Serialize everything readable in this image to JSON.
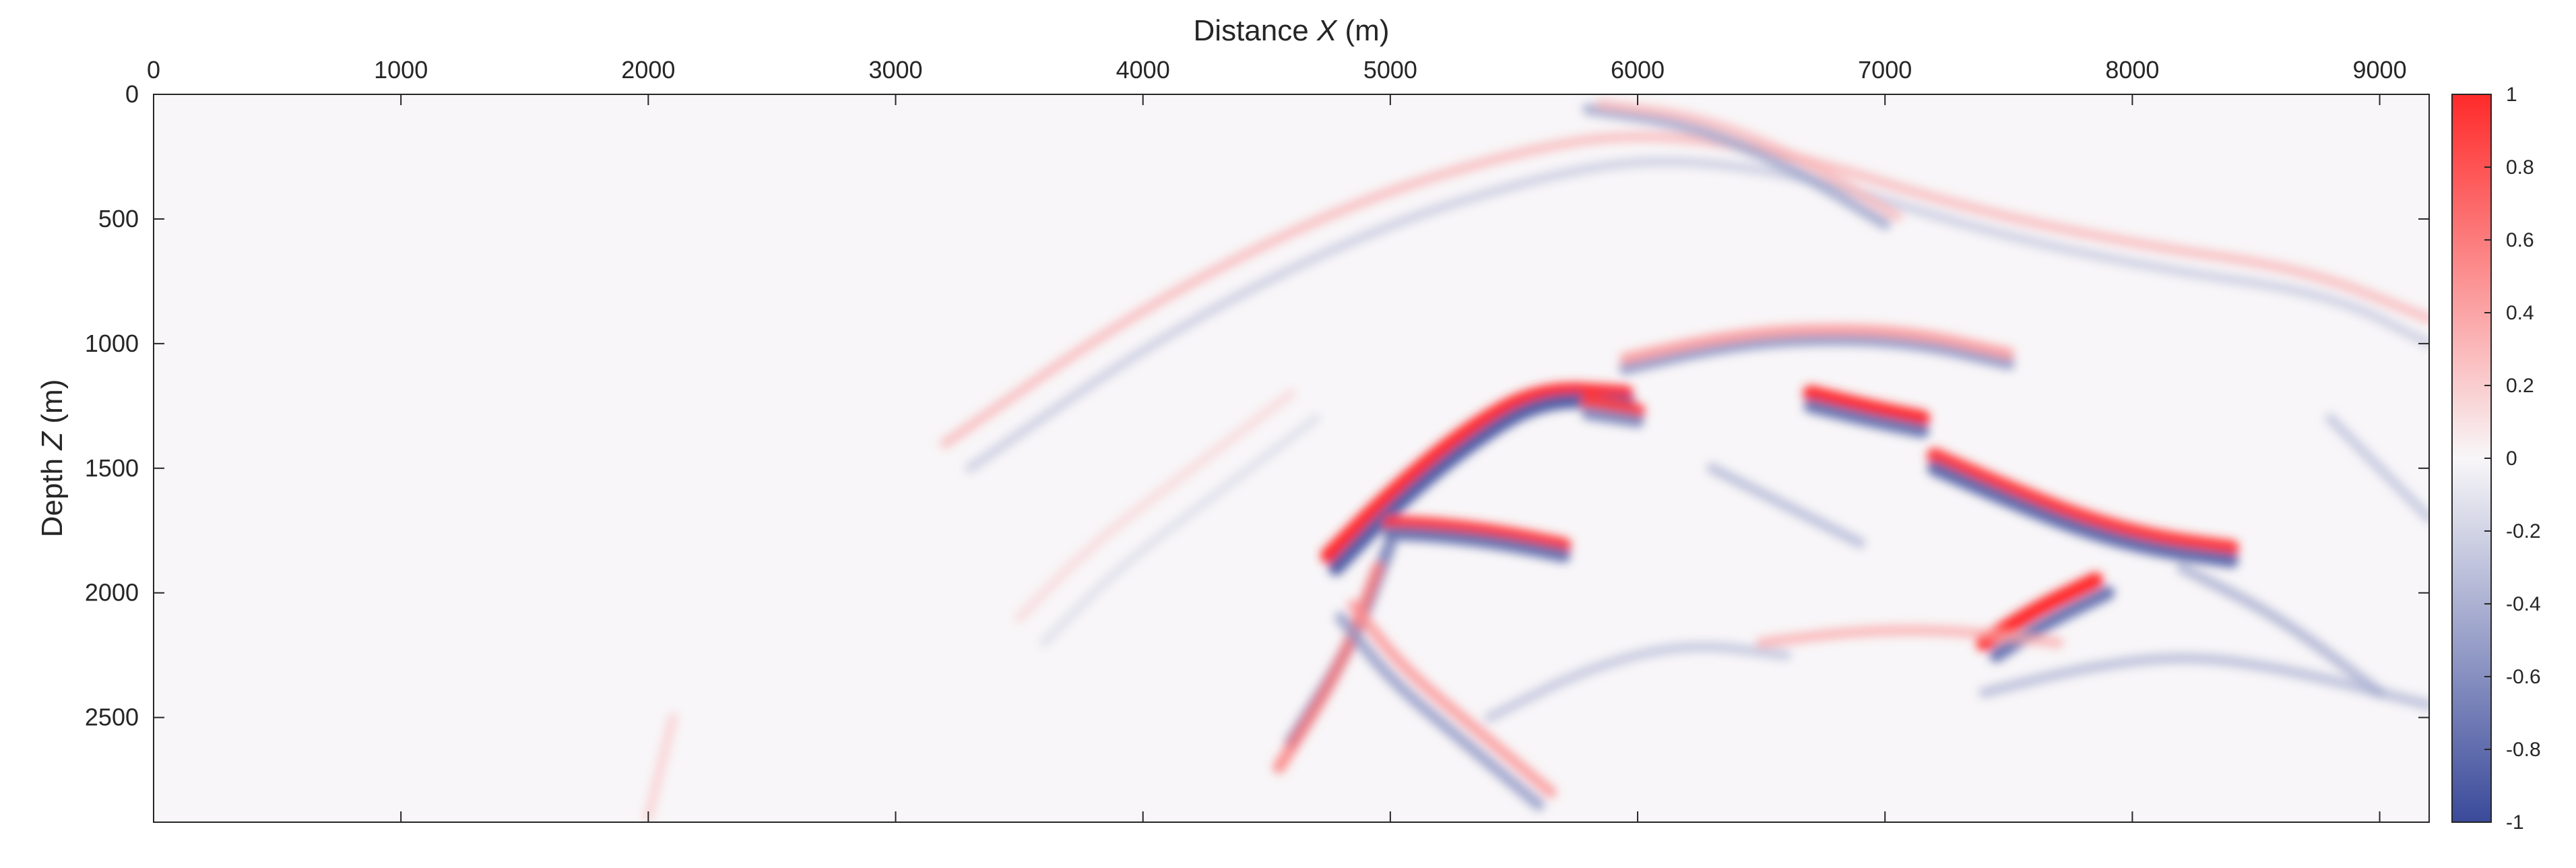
{
  "chart_data": {
    "type": "heatmap",
    "xlabel_prefix": "Distance ",
    "xlabel_var": "X",
    "xlabel_suffix": " (m)",
    "ylabel_prefix": "Depth ",
    "ylabel_var": "Z",
    "ylabel_suffix": " (m)",
    "xlim": [
      0,
      9200
    ],
    "ylim": [
      0,
      2920
    ],
    "y_reversed": true,
    "x_axis_position": "top",
    "x_ticks": [
      0,
      1000,
      2000,
      3000,
      4000,
      5000,
      6000,
      7000,
      8000,
      9000
    ],
    "x_tick_labels": [
      "0",
      "1000",
      "2000",
      "3000",
      "4000",
      "5000",
      "6000",
      "7000",
      "8000",
      "9000"
    ],
    "y_ticks": [
      0,
      500,
      1000,
      1500,
      2000,
      2500
    ],
    "y_tick_labels": [
      "0",
      "500",
      "1000",
      "1500",
      "2000",
      "2500"
    ],
    "grid": false,
    "colormap": "blue-white-red",
    "color_low": "#3a4a9a",
    "color_mid": "#f8f6f8",
    "color_high": "#ff2a2a",
    "clim": [
      -1,
      1
    ],
    "colorbar_position": "right",
    "colorbar_ticks": [
      1,
      0.8,
      0.6,
      0.4,
      0.2,
      0,
      -0.2,
      -0.4,
      -0.6,
      -0.8,
      -1
    ],
    "colorbar_tick_labels": [
      "1",
      "0.8",
      "0.6",
      "0.4",
      "0.2",
      "0",
      "-0.2",
      "-0.4",
      "-0.6",
      "-0.8",
      "-1"
    ],
    "reflectors": [
      {
        "x": [
          4750,
          5000,
          5300,
          5600,
          5950
        ],
        "z": [
          1850,
          1600,
          1350,
          1180,
          1200
        ],
        "value": 1.0
      },
      {
        "x": [
          4780,
          5020,
          5320,
          5620,
          5960
        ],
        "z": [
          1900,
          1650,
          1400,
          1220,
          1240
        ],
        "value": -0.9
      },
      {
        "x": [
          5000,
          5200,
          5450,
          5700
        ],
        "z": [
          1720,
          1730,
          1760,
          1810
        ],
        "value": 0.95
      },
      {
        "x": [
          5000,
          5200,
          5450,
          5700
        ],
        "z": [
          1760,
          1770,
          1800,
          1850
        ],
        "value": -0.8
      },
      {
        "x": [
          5800,
          6000
        ],
        "z": [
          1230,
          1270
        ],
        "value": 0.9
      },
      {
        "x": [
          5800,
          6000
        ],
        "z": [
          1280,
          1310
        ],
        "value": -0.7
      },
      {
        "x": [
          6700,
          6950,
          7150
        ],
        "z": [
          1200,
          1260,
          1300
        ],
        "value": 1.0
      },
      {
        "x": [
          6700,
          6950,
          7150
        ],
        "z": [
          1250,
          1310,
          1350
        ],
        "value": -0.8
      },
      {
        "x": [
          7200,
          7500,
          7800,
          8100,
          8400
        ],
        "z": [
          1450,
          1580,
          1700,
          1780,
          1820
        ],
        "value": 0.95
      },
      {
        "x": [
          7200,
          7500,
          7800,
          8100,
          8400
        ],
        "z": [
          1500,
          1630,
          1750,
          1830,
          1870
        ],
        "value": -0.85
      },
      {
        "x": [
          7400,
          7600,
          7850
        ],
        "z": [
          2200,
          2070,
          1950
        ],
        "value": 1.0
      },
      {
        "x": [
          7450,
          7650,
          7900
        ],
        "z": [
          2250,
          2120,
          2000
        ],
        "value": -0.8
      },
      {
        "x": [
          5950,
          6300,
          6650,
          7100,
          7500
        ],
        "z": [
          1100,
          1020,
          980,
          990,
          1080
        ],
        "value": -0.6
      },
      {
        "x": [
          5950,
          6300,
          6650,
          7100,
          7500
        ],
        "z": [
          1060,
          980,
          940,
          950,
          1040
        ],
        "value": 0.5
      },
      {
        "x": [
          4600,
          4850,
          5000
        ],
        "z": [
          2600,
          2200,
          1800
        ],
        "value": -0.7
      },
      {
        "x": [
          4550,
          4800,
          4950
        ],
        "z": [
          2700,
          2300,
          1900
        ],
        "value": 0.6
      },
      {
        "x": [
          4800,
          5000,
          5300,
          5600
        ],
        "z": [
          2100,
          2350,
          2600,
          2850
        ],
        "value": -0.55
      },
      {
        "x": [
          4850,
          5050,
          5350,
          5650
        ],
        "z": [
          2050,
          2300,
          2550,
          2800
        ],
        "value": 0.5
      },
      {
        "x": [
          3200,
          4000,
          4800,
          5500,
          6000,
          6600,
          7300,
          8000,
          8700,
          9200
        ],
        "z": [
          1400,
          850,
          450,
          230,
          150,
          230,
          450,
          600,
          700,
          900
        ],
        "value": 0.35
      },
      {
        "x": [
          3300,
          4100,
          4900,
          5600,
          6100,
          6700,
          7400,
          8100,
          8800,
          9200
        ],
        "z": [
          1500,
          950,
          550,
          330,
          250,
          330,
          550,
          700,
          800,
          1000
        ],
        "value": -0.3
      },
      {
        "x": [
          5800,
          6200,
          6600,
          7000
        ],
        "z": [
          60,
          120,
          280,
          520
        ],
        "value": -0.5
      },
      {
        "x": [
          5850,
          6250,
          6650,
          7050
        ],
        "z": [
          40,
          90,
          250,
          490
        ],
        "value": 0.35
      },
      {
        "x": [
          7400,
          7800,
          8200,
          8600,
          9200
        ],
        "z": [
          2400,
          2300,
          2250,
          2300,
          2450
        ],
        "value": -0.4
      },
      {
        "x": [
          6500,
          6900,
          7300,
          7700
        ],
        "z": [
          2200,
          2150,
          2150,
          2200
        ],
        "value": 0.4
      },
      {
        "x": [
          8200,
          8600,
          9000
        ],
        "z": [
          1900,
          2100,
          2400
        ],
        "value": -0.45
      },
      {
        "x": [
          2000,
          2050,
          2100
        ],
        "z": [
          2900,
          2700,
          2500
        ],
        "value": 0.25
      },
      {
        "x": [
          3500,
          3800,
          4200,
          4600
        ],
        "z": [
          2100,
          1800,
          1500,
          1200
        ],
        "value": 0.2
      },
      {
        "x": [
          3600,
          3900,
          4300,
          4700
        ],
        "z": [
          2200,
          1900,
          1600,
          1300
        ],
        "value": -0.2
      },
      {
        "x": [
          5400,
          5800,
          6200,
          6600
        ],
        "z": [
          2500,
          2300,
          2200,
          2250
        ],
        "value": -0.35
      },
      {
        "x": [
          6300,
          6600,
          6900
        ],
        "z": [
          1500,
          1650,
          1800
        ],
        "value": -0.4
      },
      {
        "x": [
          8800,
          9000,
          9200
        ],
        "z": [
          1300,
          1500,
          1700
        ],
        "value": -0.35
      }
    ]
  }
}
